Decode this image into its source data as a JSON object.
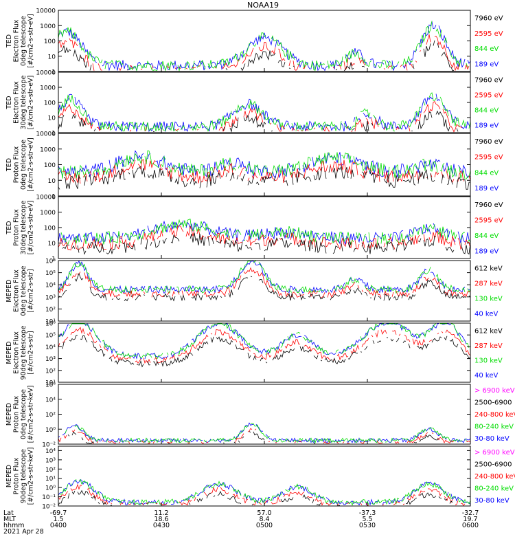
{
  "title": "NOAA19",
  "chart_data": [
    {
      "type": "line",
      "ylabel_lines": [
        "TED",
        "Electron Flux",
        "0deg telescope",
        "[#/cm2-s-str-eV]"
      ],
      "yticks": [
        {
          "value": 1,
          "label": "1"
        },
        {
          "value": 10,
          "label": "10"
        },
        {
          "value": 100,
          "label": "100"
        },
        {
          "value": 1000,
          "label": "1000"
        },
        {
          "value": 10000,
          "label": "10000"
        }
      ],
      "legend": [
        {
          "label": "7960 eV",
          "color": "#000000"
        },
        {
          "label": "2595 eV",
          "color": "#ff0000"
        },
        {
          "label": "844 eV",
          "color": "#00dd00"
        },
        {
          "label": "189 eV",
          "color": "#0000ff"
        }
      ]
    },
    {
      "type": "line",
      "ylabel_lines": [
        "TED",
        "Electron Flux",
        "30deg telescope",
        "[#/cm2-s-str-eV]"
      ],
      "yticks": [
        {
          "value": 1,
          "label": "1"
        },
        {
          "value": 10,
          "label": "10"
        },
        {
          "value": 100,
          "label": "100"
        },
        {
          "value": 1000,
          "label": "1000"
        },
        {
          "value": 10000,
          "label": "10000"
        }
      ],
      "legend": [
        {
          "label": "7960 eV",
          "color": "#000000"
        },
        {
          "label": "2595 eV",
          "color": "#ff0000"
        },
        {
          "label": "844 eV",
          "color": "#00dd00"
        },
        {
          "label": "189 eV",
          "color": "#0000ff"
        }
      ]
    },
    {
      "type": "line",
      "ylabel_lines": [
        "TED",
        "Proton Flux",
        "0deg telescope",
        "[#/cm2-s-str-eV]"
      ],
      "yticks": [
        {
          "value": 1,
          "label": "1"
        },
        {
          "value": 10,
          "label": "10"
        },
        {
          "value": 100,
          "label": "100"
        },
        {
          "value": 1000,
          "label": "1000"
        },
        {
          "value": 10000,
          "label": "10000"
        }
      ],
      "legend": [
        {
          "label": "7960 eV",
          "color": "#000000"
        },
        {
          "label": "2595 eV",
          "color": "#ff0000"
        },
        {
          "label": "844 eV",
          "color": "#00dd00"
        },
        {
          "label": "189 eV",
          "color": "#0000ff"
        }
      ]
    },
    {
      "type": "line",
      "ylabel_lines": [
        "TED",
        "Proton Flux",
        "30deg telescope",
        "[#/cm2-s-str-eV]"
      ],
      "yticks": [
        {
          "value": 1,
          "label": "1"
        },
        {
          "value": 10,
          "label": "10"
        },
        {
          "value": 100,
          "label": "100"
        },
        {
          "value": 1000,
          "label": "1000"
        },
        {
          "value": 10000,
          "label": "10000"
        }
      ],
      "legend": [
        {
          "label": "7960 eV",
          "color": "#000000"
        },
        {
          "label": "2595 eV",
          "color": "#ff0000"
        },
        {
          "label": "844 eV",
          "color": "#00dd00"
        },
        {
          "label": "189 eV",
          "color": "#0000ff"
        }
      ]
    },
    {
      "type": "line",
      "ylabel_lines": [
        "MEPED",
        "Electron Flux",
        "0deg telescope",
        "[#/cm2-s-str]"
      ],
      "yticks": [
        {
          "value": 10,
          "label": "10¹"
        },
        {
          "value": 100,
          "label": "10²"
        },
        {
          "value": 1000,
          "label": "10³"
        },
        {
          "value": 10000,
          "label": "10⁴"
        },
        {
          "value": 100000,
          "label": "10⁵"
        },
        {
          "value": 1000000,
          "label": "10⁶"
        }
      ],
      "legend": [
        {
          "label": "612 keV",
          "color": "#000000"
        },
        {
          "label": "287 keV",
          "color": "#ff0000"
        },
        {
          "label": "130 keV",
          "color": "#00dd00"
        },
        {
          "label": "40 keV",
          "color": "#0000ff"
        }
      ]
    },
    {
      "type": "line",
      "ylabel_lines": [
        "MEPED",
        "Electron Flux",
        "90deg telescope",
        "[#/cm2-s-str]"
      ],
      "yticks": [
        {
          "value": 10,
          "label": "10¹"
        },
        {
          "value": 100,
          "label": "10²"
        },
        {
          "value": 1000,
          "label": "10³"
        },
        {
          "value": 10000,
          "label": "10⁴"
        },
        {
          "value": 100000,
          "label": "10⁵"
        },
        {
          "value": 1000000,
          "label": "10⁶"
        }
      ],
      "legend": [
        {
          "label": "612 keV",
          "color": "#000000"
        },
        {
          "label": "287 keV",
          "color": "#ff0000"
        },
        {
          "label": "130 keV",
          "color": "#00dd00"
        },
        {
          "label": "40 keV",
          "color": "#0000ff"
        }
      ]
    },
    {
      "type": "line",
      "ylabel_lines": [
        "MEPED",
        "Proton Flux",
        "0deg telescope",
        "[#/cm2-s-str-keV]"
      ],
      "yticks": [
        {
          "value": 0.01,
          "label": "10⁻²"
        },
        {
          "value": 1,
          "label": "10⁰"
        },
        {
          "value": 100,
          "label": "10²"
        },
        {
          "value": 10000,
          "label": "10⁴"
        },
        {
          "value": 1000000,
          "label": "10⁶"
        }
      ],
      "legend": [
        {
          "label": "> 6900 keV",
          "color": "#ff00ff"
        },
        {
          "label": "2500-6900",
          "color": "#000000"
        },
        {
          "label": "240-800 keV",
          "color": "#ff0000"
        },
        {
          "label": "80-240 keV",
          "color": "#00dd00"
        },
        {
          "label": "30-80 keV",
          "color": "#0000ff"
        }
      ]
    },
    {
      "type": "line",
      "ylabel_lines": [
        "MEPED",
        "Proton Flux",
        "90deg telescope",
        "[#/cm2-s-str-keV]"
      ],
      "yticks": [
        {
          "value": 0.01,
          "label": "10⁻²"
        },
        {
          "value": 0.1,
          "label": "10⁻¹"
        },
        {
          "value": 1,
          "label": "10⁰"
        },
        {
          "value": 10,
          "label": "10¹"
        },
        {
          "value": 100,
          "label": "10²"
        },
        {
          "value": 1000,
          "label": "10³"
        },
        {
          "value": 10000,
          "label": "10⁴"
        }
      ],
      "legend": [
        {
          "label": "> 6900 keV",
          "color": "#ff00ff"
        },
        {
          "label": "2500-6900",
          "color": "#000000"
        },
        {
          "label": "240-800 keV",
          "color": "#ff0000"
        },
        {
          "label": "80-240 keV",
          "color": "#00dd00"
        },
        {
          "label": "30-80 keV",
          "color": "#0000ff"
        }
      ]
    }
  ],
  "x_axis": {
    "row_labels": [
      "Lat",
      "MLT",
      "hhmm"
    ],
    "columns": [
      {
        "lat": "-69.7",
        "mlt": "1.5",
        "hhmm": "0400"
      },
      {
        "lat": "11.2",
        "mlt": "18.6",
        "hhmm": "0430"
      },
      {
        "lat": "57.0",
        "mlt": "8.4",
        "hhmm": "0500"
      },
      {
        "lat": "-37.3",
        "mlt": "5.5",
        "hhmm": "0530"
      },
      {
        "lat": "-32.7",
        "mlt": "19.7",
        "hhmm": "0600"
      }
    ]
  },
  "date": "2021 Apr 28"
}
